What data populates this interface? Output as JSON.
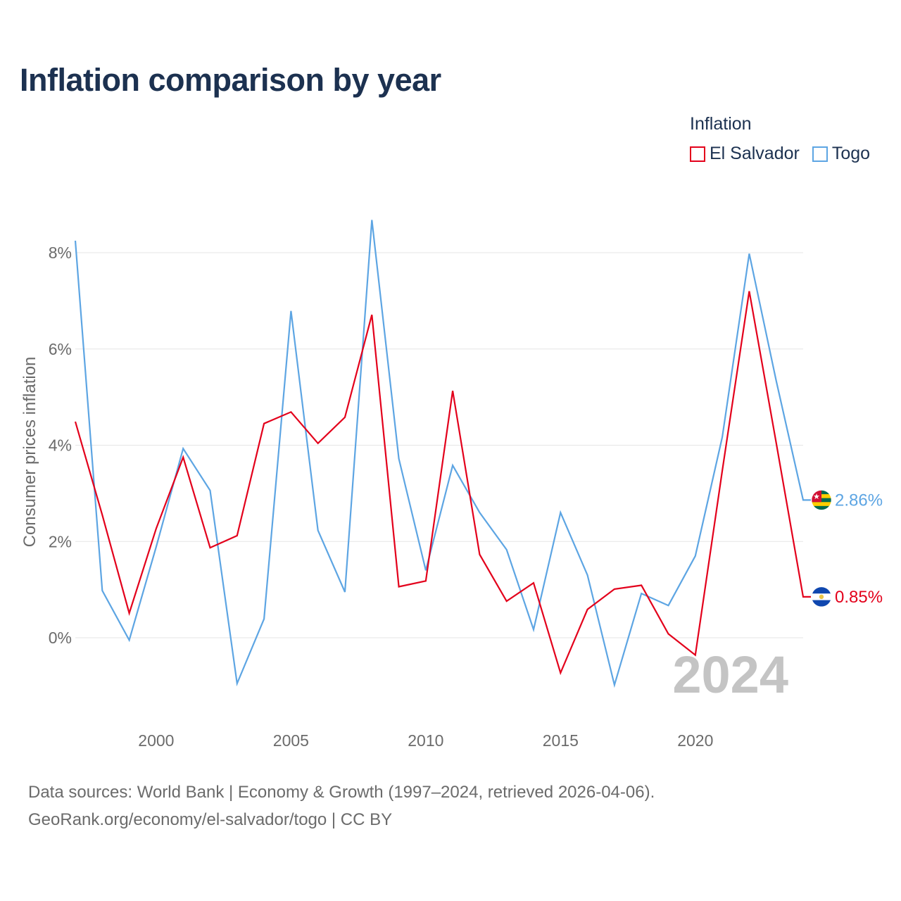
{
  "title": "Inflation comparison by year",
  "legend": {
    "title": "Inflation",
    "items": [
      {
        "label": "El Salvador",
        "color": "#e3001b"
      },
      {
        "label": "Togo",
        "color": "#5da5e3"
      }
    ]
  },
  "watermark_year": "2024",
  "footer": {
    "line1": "Data sources: World Bank | Economy & Growth (1997–2024, retrieved 2026-04-06).",
    "line2": "GeoRank.org/economy/el-salvador/togo | CC BY"
  },
  "chart_data": {
    "type": "line",
    "title": "Inflation comparison by year",
    "xlabel": "",
    "ylabel": "Consumer prices inflation",
    "x": [
      1997,
      1998,
      1999,
      2000,
      2001,
      2002,
      2003,
      2004,
      2005,
      2006,
      2007,
      2008,
      2009,
      2010,
      2011,
      2012,
      2013,
      2014,
      2015,
      2016,
      2017,
      2018,
      2019,
      2020,
      2021,
      2022,
      2023,
      2024
    ],
    "xlim": [
      1997,
      2024
    ],
    "ylim": [
      -1.5,
      9.0
    ],
    "x_ticks": [
      2000,
      2005,
      2010,
      2015,
      2020
    ],
    "x_tick_labels": [
      "2000",
      "2005",
      "2010",
      "2015",
      "2020"
    ],
    "y_ticks": [
      0,
      2,
      4,
      6,
      8
    ],
    "y_tick_labels": [
      "0%",
      "2%",
      "4%",
      "6%",
      "8%"
    ],
    "grid": true,
    "series": [
      {
        "name": "El Salvador",
        "color": "#e3001b",
        "values": [
          4.49,
          2.55,
          0.51,
          2.27,
          3.75,
          1.87,
          2.12,
          4.45,
          4.69,
          4.04,
          4.58,
          6.71,
          1.06,
          1.18,
          5.13,
          1.73,
          0.76,
          1.14,
          -0.73,
          0.59,
          1.01,
          1.09,
          0.08,
          -0.36,
          3.47,
          7.2,
          4.05,
          0.85
        ],
        "end_label": "0.85%"
      },
      {
        "name": "Togo",
        "color": "#5da5e3",
        "values": [
          8.25,
          0.98,
          -0.05,
          1.89,
          3.93,
          3.06,
          -0.95,
          0.39,
          6.79,
          2.23,
          0.95,
          8.68,
          3.72,
          1.4,
          3.58,
          2.6,
          1.83,
          0.17,
          2.6,
          1.3,
          -0.98,
          0.92,
          0.67,
          1.7,
          4.17,
          7.98,
          5.34,
          2.86
        ],
        "end_label": "2.86%"
      }
    ]
  }
}
